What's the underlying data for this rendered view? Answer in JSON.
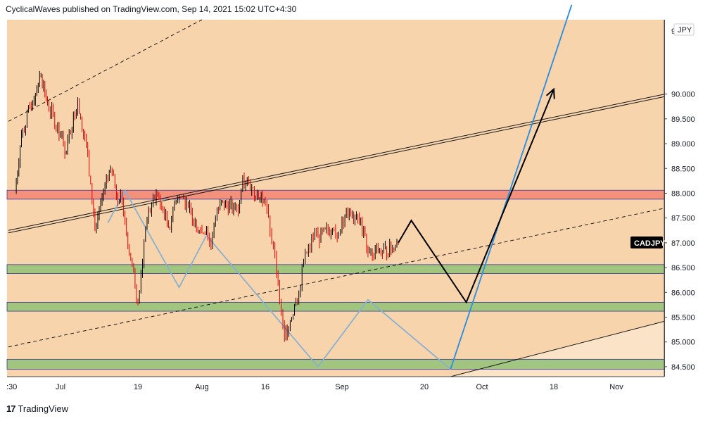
{
  "header": {
    "text": "CyclicalWaves published on TradingView.com, Sep 14, 2021 15:02 UTC+4:30"
  },
  "footer": {
    "logo": "17",
    "brand": "TradingView"
  },
  "chart_data": {
    "type": "candlestick",
    "symbol": "CADJPY",
    "currency": "JPY",
    "y_range": [
      84.3,
      91.5
    ],
    "y_ticks": [
      "90.000",
      "89.500",
      "89.000",
      "88.500",
      "88.000",
      "87.500",
      "87.000",
      "86.500",
      "86.000",
      "85.500",
      "85.000",
      "84.500"
    ],
    "y_tick_values": [
      90.0,
      89.5,
      89.0,
      88.5,
      88.0,
      87.5,
      87.0,
      86.5,
      86.0,
      85.5,
      85.0,
      84.5
    ],
    "top_tick_partial": "9",
    "x_labels": [
      ":30",
      "Jul",
      "19",
      "Aug",
      "16",
      "Sep",
      "20",
      "Oct",
      "18",
      "Nov"
    ],
    "current_price_label": "CADJPY",
    "colors": {
      "background": "#f8d4ac",
      "up": "#000000",
      "down": "#e30000",
      "resistance_zone": "#f28a78",
      "support_zone": "#97c27a",
      "projection_black": "#000000",
      "projection_blue": "#2e8ee0",
      "cycle_line": "#8ab0cf"
    },
    "zones": [
      {
        "name": "resistance",
        "from": 87.88,
        "to": 88.06
      },
      {
        "name": "support-1",
        "from": 86.38,
        "to": 86.56
      },
      {
        "name": "support-2",
        "from": 85.62,
        "to": 85.8
      },
      {
        "name": "support-3",
        "from": 84.45,
        "to": 84.65
      }
    ],
    "price_series": [
      [
        "Jun 24",
        88.0
      ],
      [
        "Jun 25",
        89.2
      ],
      [
        "Jun 28",
        90.4
      ],
      [
        "Jun 29",
        89.8
      ],
      [
        "Jul 1",
        89.2
      ],
      [
        "Jul 2",
        88.8
      ],
      [
        "Jul 5",
        89.9
      ],
      [
        "Jul 6",
        89.3
      ],
      [
        "Jul 7",
        89.0
      ],
      [
        "Jul 8",
        88.2
      ],
      [
        "Jul 9",
        87.3
      ],
      [
        "Jul 12",
        88.3
      ],
      [
        "Jul 13",
        88.4
      ],
      [
        "Jul 14",
        87.9
      ],
      [
        "Jul 15",
        88.0
      ],
      [
        "Jul 16",
        87.4
      ],
      [
        "Jul 19",
        85.8
      ],
      [
        "Jul 20",
        86.6
      ],
      [
        "Jul 21",
        87.5
      ],
      [
        "Jul 22",
        87.8
      ],
      [
        "Jul 23",
        88.0
      ],
      [
        "Jul 26",
        87.3
      ],
      [
        "Jul 27",
        87.8
      ],
      [
        "Jul 28",
        87.9
      ],
      [
        "Jul 29",
        87.9
      ],
      [
        "Jul 30",
        87.7
      ],
      [
        "Aug 2",
        87.2
      ],
      [
        "Aug 3",
        87.3
      ],
      [
        "Aug 4",
        86.9
      ],
      [
        "Aug 5",
        87.5
      ],
      [
        "Aug 6",
        87.8
      ],
      [
        "Aug 9",
        87.7
      ],
      [
        "Aug 10",
        87.6
      ],
      [
        "Aug 11",
        88.3
      ],
      [
        "Aug 12",
        88.3
      ],
      [
        "Aug 13",
        88.1
      ],
      [
        "Aug 16",
        87.8
      ],
      [
        "Aug 17",
        87.2
      ],
      [
        "Aug 18",
        86.8
      ],
      [
        "Aug 19",
        85.8
      ],
      [
        "Aug 20",
        85.1
      ],
      [
        "Aug 23",
        86.0
      ],
      [
        "Aug 24",
        86.6
      ],
      [
        "Aug 25",
        86.9
      ],
      [
        "Aug 26",
        87.1
      ],
      [
        "Aug 27",
        87.1
      ],
      [
        "Aug 30",
        87.3
      ],
      [
        "Aug 31",
        87.1
      ],
      [
        "Sep 1",
        87.5
      ],
      [
        "Sep 2",
        87.6
      ],
      [
        "Sep 3",
        87.6
      ],
      [
        "Sep 6",
        87.3
      ],
      [
        "Sep 7",
        86.8
      ],
      [
        "Sep 8",
        86.7
      ],
      [
        "Sep 9",
        86.9
      ],
      [
        "Sep 10",
        86.8
      ],
      [
        "Sep 13",
        86.9
      ],
      [
        "Sep 14",
        87.0
      ]
    ],
    "projection_black": [
      [
        "Sep 14",
        87.0
      ],
      [
        "Sep 17",
        87.45
      ],
      [
        "Sep 28",
        85.8
      ],
      [
        "Oct 18",
        90.1
      ]
    ],
    "cycle_line": [
      [
        "Jul 12",
        87.4
      ],
      [
        "Jul 16",
        88.05
      ],
      [
        "Jul 28",
        86.1
      ],
      [
        "Aug 3",
        87.15
      ],
      [
        "Aug 27",
        84.5
      ],
      [
        "Sep 7",
        85.85
      ],
      [
        "Sep 25",
        84.45
      ],
      [
        "Oct 22",
        91.8
      ]
    ],
    "trend_lines": [
      {
        "name": "upper-channel-dashed",
        "style": "dashed",
        "points": [
          [
            "Jun 23",
            89.45
          ],
          [
            "Aug 2",
            91.5
          ]
        ]
      },
      {
        "name": "mid-channel-dashed",
        "style": "dashed",
        "points": [
          [
            "Jun 23",
            84.9
          ],
          [
            "Nov 12",
            87.7
          ]
        ]
      },
      {
        "name": "double-line-a",
        "style": "solid",
        "points": [
          [
            "Jun 23",
            87.25
          ],
          [
            "Nov 12",
            90.0
          ]
        ]
      },
      {
        "name": "double-line-b",
        "style": "solid",
        "points": [
          [
            "Jun 23",
            87.2
          ],
          [
            "Nov 12",
            89.95
          ]
        ]
      },
      {
        "name": "lower-trend",
        "style": "solid",
        "points": [
          [
            "Sep 25",
            84.3
          ],
          [
            "Nov 12",
            85.42
          ]
        ]
      }
    ]
  }
}
